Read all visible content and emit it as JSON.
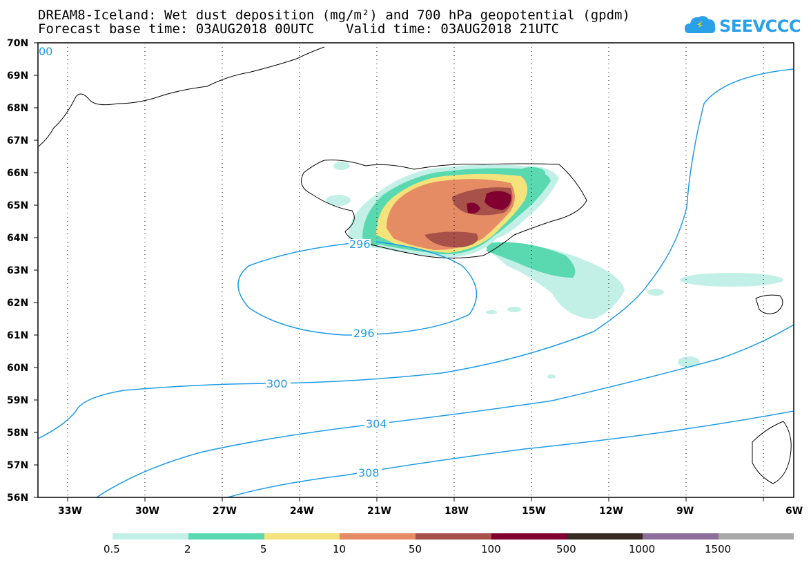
{
  "header": {
    "title_line1": "DREAM8-Iceland: Wet dust deposition (mg/m²) and 700 hPa geopotential (gpdm)",
    "title_line2": "Forecast base time: 03AUG2018 00UTC    Valid time: 03AUG2018 21UTC"
  },
  "logo": {
    "text": "SEEVCCC",
    "icon": "cloud-icon",
    "color": "#2aa0e8"
  },
  "map": {
    "lat_labels": [
      "70N",
      "69N",
      "68N",
      "67N",
      "66N",
      "65N",
      "64N",
      "63N",
      "62N",
      "61N",
      "60N",
      "59N",
      "58N",
      "57N",
      "56N"
    ],
    "lon_labels": [
      "33W",
      "30W",
      "27W",
      "24W",
      "21W",
      "18W",
      "15W",
      "12W",
      "9W",
      "6W"
    ],
    "contour_color": "#1e9be6",
    "contour_labels": [
      "296",
      "296",
      "300",
      "304",
      "308",
      "00"
    ]
  },
  "colorbar": {
    "labels": [
      "0.5",
      "2",
      "5",
      "10",
      "50",
      "100",
      "500",
      "1000",
      "1500"
    ],
    "colors": [
      "#c2f0e6",
      "#5ad9b0",
      "#f4e27a",
      "#e68c64",
      "#a8504a",
      "#800030",
      "#3a2a24",
      "#8c6e9a",
      "#a8a8a8"
    ]
  }
}
